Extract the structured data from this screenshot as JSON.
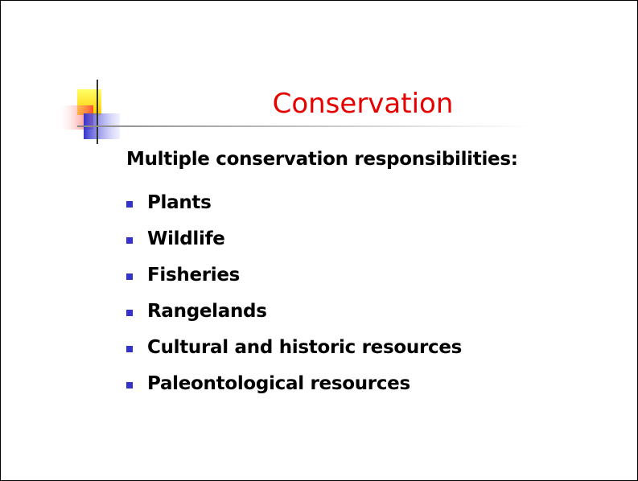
{
  "slide": {
    "title": "Conservation",
    "intro": "Multiple conservation responsibilities:",
    "bullets": [
      "Plants",
      "Wildlife",
      "Fisheries",
      "Rangelands",
      "Cultural and historic resources",
      "Paleontological resources"
    ]
  }
}
